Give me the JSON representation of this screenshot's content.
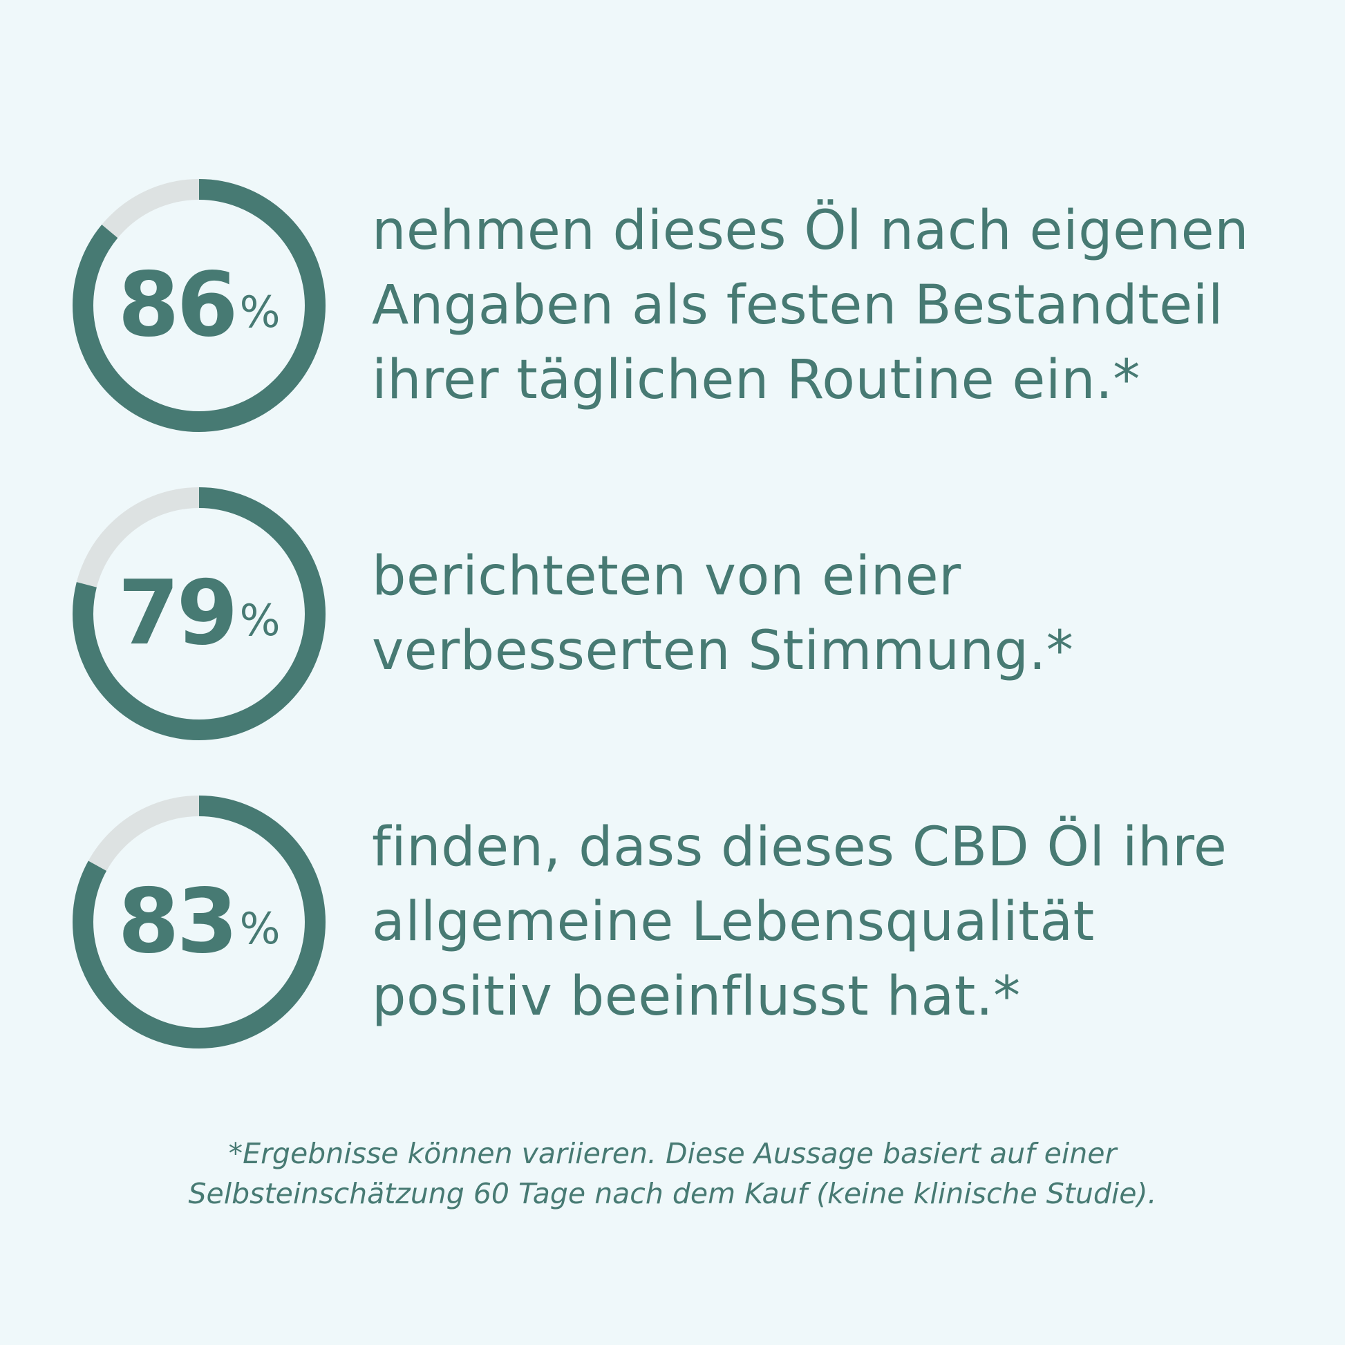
{
  "colors": {
    "background": "#eff8fa",
    "accent": "#477a73",
    "track": "#dde2e2"
  },
  "stats": [
    {
      "value": 86,
      "percent_sign": "%",
      "lines": [
        "nehmen dieses Öl nach eigenen",
        "Angaben als festen Bestandteil",
        "ihrer täglichen Routine ein.*"
      ]
    },
    {
      "value": 79,
      "percent_sign": "%",
      "lines": [
        "berichteten von einer",
        "verbesserten Stimmung.*"
      ]
    },
    {
      "value": 83,
      "percent_sign": "%",
      "lines": [
        "finden, dass dieses CBD Öl ihre",
        "allgemeine Lebensqualität",
        "positiv beeinflusst hat.*"
      ]
    }
  ],
  "footnote": {
    "lines": [
      "*Ergebnisse können variieren. Diese Aussage basiert auf einer",
      "Selbsteinschätzung 60 Tage nach dem Kauf (keine klinische Studie)."
    ]
  }
}
